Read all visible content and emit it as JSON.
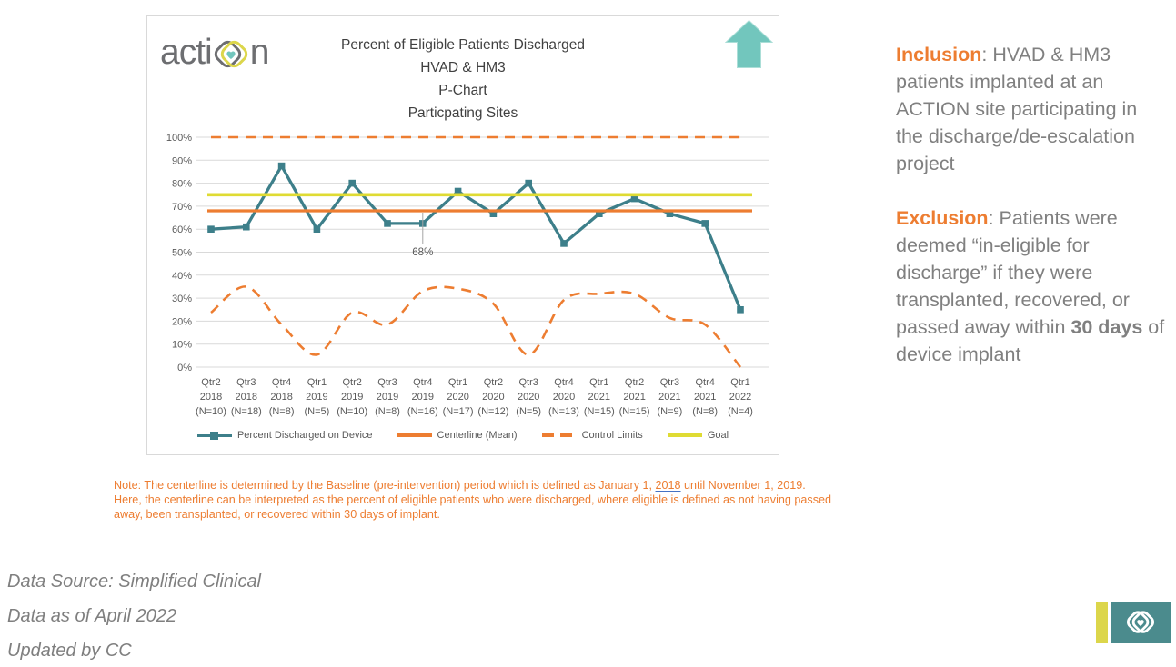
{
  "colors": {
    "series_teal": "#3D7F8A",
    "accent_orange": "#ED7D31",
    "goal_yellow": "#DFDB33",
    "arrow_teal": "#72C6BD",
    "badge_teal": "#4B8B8D",
    "badge_yellow": "#DCD64B",
    "text_gray": "#808080",
    "axis_gray": "#595959",
    "grid_gray": "#D9D9D9",
    "title_gray": "#404040",
    "logo_gray": "#6D6E71",
    "footer_gray": "#7F7F7F",
    "underline_blue": "#4472C4"
  },
  "chart": {
    "logo_pre": "acti",
    "logo_post": "n",
    "title_lines": [
      "Percent of Eligible Patients Discharged",
      "HVAD & HM3",
      "P-Chart",
      "Particpating Sites"
    ]
  },
  "chart_data": {
    "type": "line",
    "title": "Percent of Eligible Patients Discharged HVAD & HM3 P-Chart Particpating Sites",
    "ylim": [
      0,
      100
    ],
    "grid": true,
    "legend_position": "bottom",
    "yticks": [
      {
        "v": 0,
        "label": "0%"
      },
      {
        "v": 10,
        "label": "10%"
      },
      {
        "v": 20,
        "label": "20%"
      },
      {
        "v": 30,
        "label": "30%"
      },
      {
        "v": 40,
        "label": "40%"
      },
      {
        "v": 50,
        "label": "50%"
      },
      {
        "v": 60,
        "label": "60%"
      },
      {
        "v": 70,
        "label": "70%"
      },
      {
        "v": 80,
        "label": "80%"
      },
      {
        "v": 90,
        "label": "90%"
      },
      {
        "v": 100,
        "label": "100%"
      }
    ],
    "categories": [
      {
        "line1": "Qtr2",
        "line2": "2018",
        "line3": "(N=10)"
      },
      {
        "line1": "Qtr3",
        "line2": "2018",
        "line3": "(N=18)"
      },
      {
        "line1": "Qtr4",
        "line2": "2018",
        "line3": "(N=8)"
      },
      {
        "line1": "Qtr1",
        "line2": "2019",
        "line3": "(N=5)"
      },
      {
        "line1": "Qtr2",
        "line2": "2019",
        "line3": "(N=10)"
      },
      {
        "line1": "Qtr3",
        "line2": "2019",
        "line3": "(N=8)"
      },
      {
        "line1": "Qtr4",
        "line2": "2019",
        "line3": "(N=16)"
      },
      {
        "line1": "Qtr1",
        "line2": "2020",
        "line3": "(N=17)"
      },
      {
        "line1": "Qtr2",
        "line2": "2020",
        "line3": "(N=12)"
      },
      {
        "line1": "Qtr3",
        "line2": "2020",
        "line3": "(N=5)"
      },
      {
        "line1": "Qtr4",
        "line2": "2020",
        "line3": "(N=13)"
      },
      {
        "line1": "Qtr1",
        "line2": "2021",
        "line3": "(N=15)"
      },
      {
        "line1": "Qtr2",
        "line2": "2021",
        "line3": "(N=15)"
      },
      {
        "line1": "Qtr3",
        "line2": "2021",
        "line3": "(N=9)"
      },
      {
        "line1": "Qtr4",
        "line2": "2021",
        "line3": "(N=8)"
      },
      {
        "line1": "Qtr1",
        "line2": "2022",
        "line3": "(N=4)"
      }
    ],
    "series": [
      {
        "name": "Percent Discharged on Device",
        "type": "line-markers",
        "color": "#3D7F8A",
        "values": [
          60,
          61,
          87.5,
          60,
          80,
          62.5,
          62.5,
          76.5,
          66.7,
          80,
          53.8,
          66.7,
          73.3,
          66.7,
          62.5,
          25
        ]
      },
      {
        "name": "Centerline (Mean)",
        "type": "hline",
        "color": "#ED7D31",
        "value": 68
      },
      {
        "name": "Control Limits",
        "type": "dashed-pair",
        "color": "#ED7D31",
        "upper": [
          100,
          100,
          100,
          100,
          100,
          100,
          100,
          100,
          100,
          100,
          100,
          100,
          100,
          100,
          100,
          100
        ],
        "lower": [
          23.7,
          35,
          18.5,
          5.4,
          23.7,
          18.5,
          33,
          34.1,
          27.6,
          5.4,
          29.2,
          31.9,
          31.9,
          21.4,
          18.5,
          0
        ]
      },
      {
        "name": "Goal",
        "type": "hline",
        "color": "#DFDB33",
        "value": 75
      }
    ],
    "annotation": {
      "index": 6,
      "label": "68%"
    }
  },
  "note": {
    "part1": "Note: The centerline is determined by the Baseline (pre-intervention) period which is defined as January 1, ",
    "underlined": "2018",
    "part2": " until November 1, 2019. Here, the centerline can be interpreted as the percent of eligible patients who were discharged, where eligible is defined as not having passed away, been transplanted, or recovered within 30 days of implant."
  },
  "sidebar": {
    "inclusion_label": "Inclusion",
    "inclusion_rest": ": HVAD & HM3 patients implanted at an ACTION site participating in the discharge/de-escalation project",
    "exclusion_label": "Exclusion",
    "exclusion_rest1": ": Patients were deemed “in-eligible for discharge” if they were transplanted, recovered, or passed away within ",
    "exclusion_bold": "30 days",
    "exclusion_rest2": " of device implant"
  },
  "footer": {
    "lines": [
      "Data Source: Simplified Clinical",
      "Data as of April 2022",
      "Updated by CC"
    ]
  }
}
